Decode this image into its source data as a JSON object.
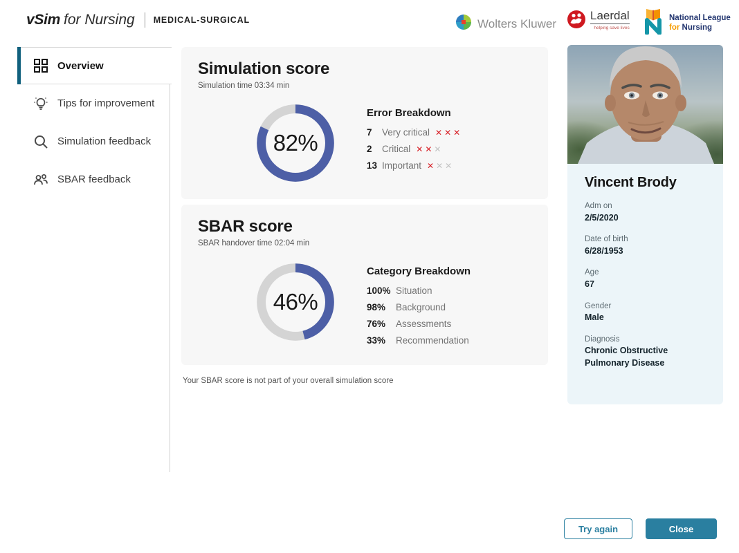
{
  "header": {
    "brand": {
      "vsim": "vSim",
      "for_nursing": "for Nursing",
      "product": "MEDICAL-SURGICAL"
    },
    "partners": {
      "wolters_kluwer": "Wolters Kluwer",
      "laerdal": "Laerdal",
      "laerdal_tagline": "helping save lives",
      "nln_line1": "National League",
      "nln_for": "for",
      "nln_line2": "Nursing"
    }
  },
  "sidebar": {
    "items": [
      {
        "label": "Overview",
        "icon": "grid",
        "active": true
      },
      {
        "label": "Tips for improvement",
        "icon": "lightbulb",
        "active": false
      },
      {
        "label": "Simulation feedback",
        "icon": "search",
        "active": false
      },
      {
        "label": "SBAR feedback",
        "icon": "people",
        "active": false
      }
    ]
  },
  "simulation": {
    "title": "Simulation score",
    "subtitle": "Simulation time 03:34 min",
    "score_pct": 82,
    "score_label": "82%",
    "breakdown_title": "Error Breakdown",
    "errors": [
      {
        "count": "7",
        "label": "Very critical",
        "red_marks": 3,
        "total_marks": 3
      },
      {
        "count": "2",
        "label": "Critical",
        "red_marks": 2,
        "total_marks": 3
      },
      {
        "count": "13",
        "label": "Important",
        "red_marks": 1,
        "total_marks": 3
      }
    ]
  },
  "sbar": {
    "title": "SBAR score",
    "subtitle": "SBAR handover time 02:04 min",
    "score_pct": 46,
    "score_label": "46%",
    "breakdown_title": "Category Breakdown",
    "categories": [
      {
        "value": "100%",
        "label": "Situation"
      },
      {
        "value": "98%",
        "label": "Background"
      },
      {
        "value": "76%",
        "label": "Assessments"
      },
      {
        "value": "33%",
        "label": "Recommendation"
      }
    ],
    "footnote": "Your SBAR score is not part of your overall simulation score"
  },
  "patient": {
    "name": "Vincent Brody",
    "fields": [
      {
        "label": "Adm on",
        "value": "2/5/2020"
      },
      {
        "label": "Date of birth",
        "value": "6/28/1953"
      },
      {
        "label": "Age",
        "value": "67"
      },
      {
        "label": "Gender",
        "value": "Male"
      },
      {
        "label": "Diagnosis",
        "value": "Chronic Obstructive Pulmonary Disease"
      }
    ]
  },
  "actions": {
    "try_again": "Try again",
    "close": "Close"
  },
  "chart_data": [
    {
      "type": "donut",
      "title": "Simulation score",
      "value": 82,
      "max": 100,
      "fill_color": "#4d5fa6",
      "track_color": "#d4d4d4"
    },
    {
      "type": "donut",
      "title": "SBAR score",
      "value": 46,
      "max": 100,
      "fill_color": "#4d5fa6",
      "track_color": "#d4d4d4"
    }
  ],
  "colors": {
    "accent": "#2a7fa0",
    "accent_dark": "#10607d",
    "donut_blue": "#4d5fa6",
    "donut_track": "#d4d4d4",
    "error_red": "#d71f26",
    "error_gray": "#c3c3c3",
    "card_bg": "#f7f7f7",
    "patient_panel_bg": "#ecf5f9"
  }
}
